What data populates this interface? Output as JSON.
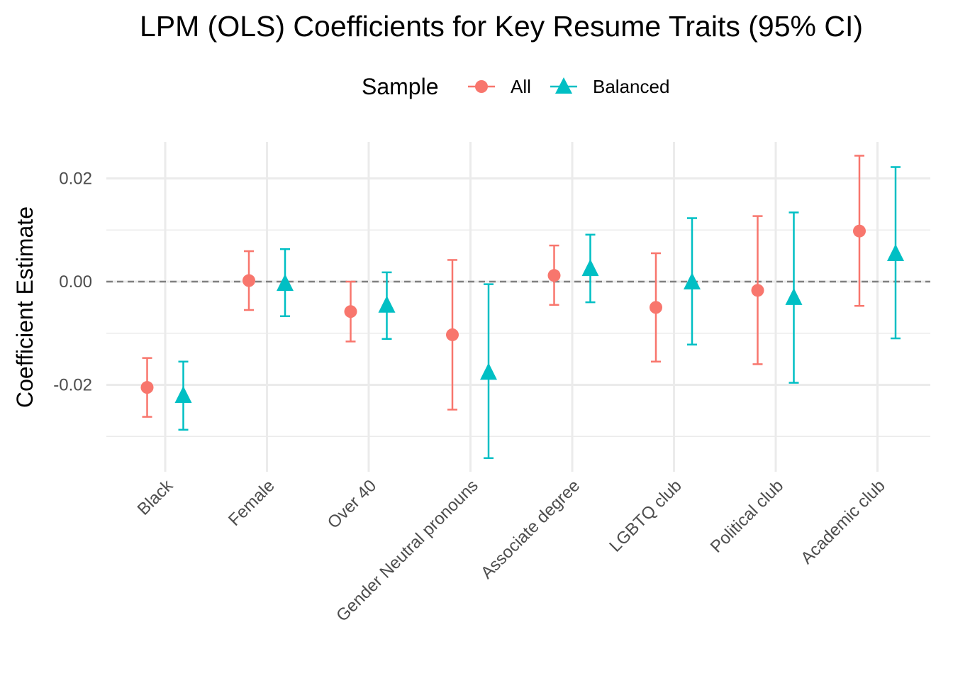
{
  "chart_data": {
    "type": "scatter",
    "title": "LPM (OLS) Coefficients for Key Resume Traits (95% CI)",
    "xlabel": "",
    "ylabel": "Coefficient Estimate",
    "ylim": [
      -0.034,
      0.027
    ],
    "yticks": [
      -0.02,
      0.0,
      0.02
    ],
    "ytick_labels": [
      "-0.02",
      "0.00",
      "0.02"
    ],
    "categories": [
      "Black",
      "Female",
      "Over 40",
      "Gender Neutral pronouns",
      "Associate degree",
      "LGBTQ club",
      "Political club",
      "Academic club"
    ],
    "reference_line": {
      "y": 0,
      "style": "dashed"
    },
    "grid": true,
    "legend": {
      "title": "Sample",
      "position": "top"
    },
    "series": [
      {
        "name": "All",
        "marker": "circle",
        "color": "#F8766D",
        "values": [
          -0.0205,
          0.0002,
          -0.0058,
          -0.0103,
          0.0012,
          -0.005,
          -0.0017,
          0.0098
        ],
        "ci_low": [
          -0.0262,
          -0.0055,
          -0.0116,
          -0.0248,
          -0.0045,
          -0.0155,
          -0.016,
          -0.0047
        ],
        "ci_high": [
          -0.0148,
          0.0059,
          0.0,
          0.0042,
          0.007,
          0.0055,
          0.0127,
          0.0244
        ]
      },
      {
        "name": "Balanced",
        "marker": "triangle",
        "color": "#00BFC4",
        "values": [
          -0.022,
          -0.0003,
          -0.0045,
          -0.0175,
          0.0026,
          0.0,
          -0.003,
          0.0055
        ],
        "ci_low": [
          -0.0287,
          -0.0067,
          -0.0111,
          -0.0342,
          -0.004,
          -0.0122,
          -0.0196,
          -0.011
        ],
        "ci_high": [
          -0.0155,
          0.0063,
          0.0018,
          -0.0005,
          0.0091,
          0.0123,
          0.0134,
          0.0222
        ]
      }
    ]
  }
}
